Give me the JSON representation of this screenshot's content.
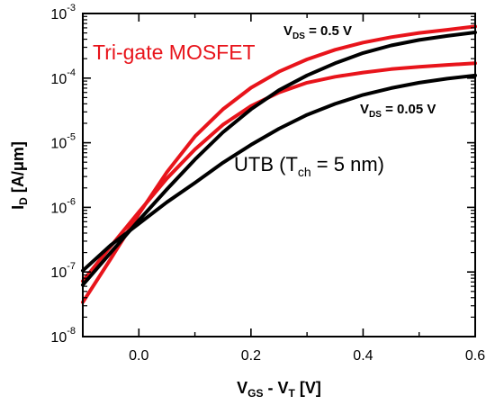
{
  "chart_data": {
    "type": "line",
    "x_scale": "linear",
    "y_scale": "log",
    "xlim": [
      -0.1,
      0.6
    ],
    "ylim": [
      1e-08,
      0.001
    ],
    "x_ticks": [
      {
        "value": 0.0,
        "label": "0.0"
      },
      {
        "value": 0.2,
        "label": "0.2"
      },
      {
        "value": 0.4,
        "label": "0.4"
      },
      {
        "value": 0.6,
        "label": "0.6"
      }
    ],
    "y_ticks": [
      {
        "value": 1e-08,
        "base": "10",
        "exp": "-8"
      },
      {
        "value": 1e-07,
        "base": "10",
        "exp": "-7"
      },
      {
        "value": 1e-06,
        "base": "10",
        "exp": "-6"
      },
      {
        "value": 1e-05,
        "base": "10",
        "exp": "-5"
      },
      {
        "value": 0.0001,
        "base": "10",
        "exp": "-4"
      },
      {
        "value": 0.001,
        "base": "10",
        "exp": "-3"
      }
    ],
    "xlabel": {
      "main": "V",
      "sub1": "GS",
      "mid": " - V",
      "sub2": "T",
      "tail": " [V]"
    },
    "ylabel": {
      "main": "I",
      "sub": "D",
      "tail": " [A/μm]"
    },
    "grid": false,
    "annotations": {
      "trigate": "Tri-gate MOSFET",
      "utb_main": "UTB (T",
      "utb_sub": "ch",
      "utb_tail": " = 5 nm)",
      "vds_high_main": "V",
      "vds_high_sub": "DS",
      "vds_high_tail": " = 0.5 V",
      "vds_low_main": "V",
      "vds_low_sub": "DS",
      "vds_low_tail": " = 0.05 V"
    },
    "series": [
      {
        "color": "#e8141b",
        "x": [
          -0.1,
          -0.05,
          0.0,
          0.05,
          0.1,
          0.15,
          0.2,
          0.25,
          0.3,
          0.35,
          0.4,
          0.45,
          0.5,
          0.55,
          0.6
        ],
        "y": [
          3.4e-08,
          1.6e-07,
          7.9e-07,
          3.5e-06,
          1.25e-05,
          3.3e-05,
          7.1e-05,
          0.000126,
          0.000195,
          0.000275,
          0.000355,
          0.00043,
          0.0005,
          0.00056,
          0.00063
        ]
      },
      {
        "color": "#e8141b",
        "x": [
          -0.1,
          -0.05,
          0.0,
          0.05,
          0.1,
          0.15,
          0.2,
          0.25,
          0.3,
          0.35,
          0.4,
          0.45,
          0.5,
          0.55,
          0.6
        ],
        "y": [
          7.2e-08,
          2.5e-07,
          8.5e-07,
          2.8e-06,
          7.9e-06,
          1.9e-05,
          3.7e-05,
          6e-05,
          8.5e-05,
          0.000105,
          0.000122,
          0.000138,
          0.00015,
          0.00016,
          0.00017
        ]
      },
      {
        "color": "#000000",
        "x": [
          -0.1,
          -0.05,
          0.0,
          0.05,
          0.1,
          0.15,
          0.2,
          0.25,
          0.3,
          0.35,
          0.4,
          0.45,
          0.5,
          0.55,
          0.6
        ],
        "y": [
          6.3e-08,
          2e-07,
          6.3e-07,
          1.9e-06,
          5.5e-06,
          1.45e-05,
          3.3e-05,
          6.5e-05,
          0.00011,
          0.00017,
          0.000245,
          0.00032,
          0.00039,
          0.00045,
          0.00051
        ]
      },
      {
        "color": "#000000",
        "x": [
          -0.1,
          -0.05,
          0.0,
          0.05,
          0.1,
          0.15,
          0.2,
          0.25,
          0.3,
          0.35,
          0.4,
          0.45,
          0.5,
          0.55,
          0.6
        ],
        "y": [
          1.05e-07,
          2.6e-07,
          5.6e-07,
          1.2e-06,
          2.4e-06,
          4.9e-06,
          9.3e-06,
          1.65e-05,
          2.7e-05,
          4e-05,
          5.5e-05,
          7e-05,
          8.5e-05,
          9.8e-05,
          0.00011
        ]
      }
    ]
  }
}
